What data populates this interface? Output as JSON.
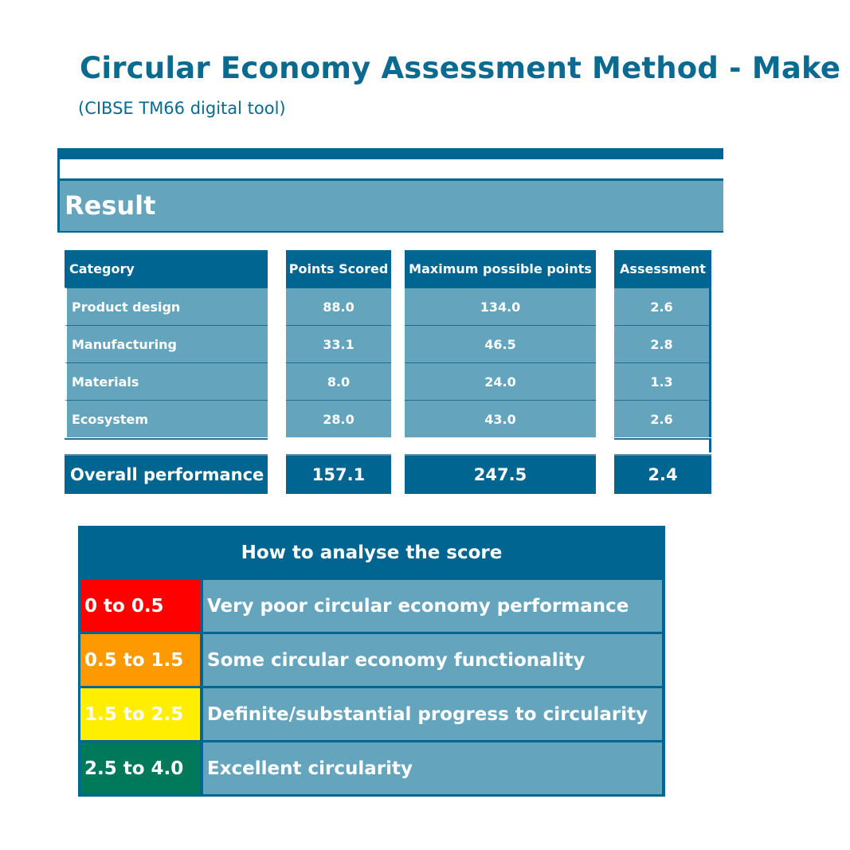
{
  "header": {
    "title": "Circular Economy Assessment Method - Make",
    "subtitle": "(CIBSE TM66 digital tool)"
  },
  "result_banner": {
    "label": "Result"
  },
  "table": {
    "headers": [
      "Category",
      "Points Scored",
      "Maximum possible points",
      "Assessment"
    ],
    "rows": [
      [
        "Product design",
        "88.0",
        "134.0",
        "2.6"
      ],
      [
        "Manufacturing",
        "33.1",
        "46.5",
        "2.8"
      ],
      [
        "Materials",
        "8.0",
        "24.0",
        "1.3"
      ],
      [
        "Ecosystem",
        "28.0",
        "43.0",
        "2.6"
      ]
    ],
    "total": [
      "Overall performance",
      "157.1",
      "247.5",
      "2.4"
    ]
  },
  "legend": {
    "title": "How to analyse the score",
    "items": [
      {
        "range": "0 to 0.5",
        "description": "Very poor circular economy performance",
        "color": "#ff0000"
      },
      {
        "range": "0.5 to 1.5",
        "description": "Some circular economy functionality",
        "color": "#ff9900"
      },
      {
        "range": "1.5 to 2.5",
        "description": "Definite/substantial progress to circularity",
        "color": "#ffee00"
      },
      {
        "range": "2.5 to 4.0",
        "description": "Excellent circularity",
        "color": "#00795b"
      }
    ]
  },
  "colors": {
    "primary": "#006590",
    "secondary": "#64a4bc",
    "title": "#0a6a8f"
  }
}
